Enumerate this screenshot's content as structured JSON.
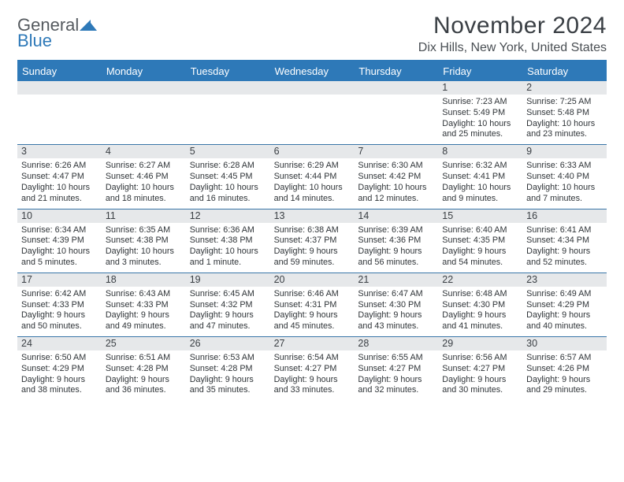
{
  "brand": {
    "part1": "General",
    "part2": "Blue"
  },
  "title": "November 2024",
  "location": "Dix Hills, New York, United States",
  "colors": {
    "header_bg": "#2e79b8",
    "header_text": "#ffffff",
    "daynum_bg": "#e6e8ea",
    "week_divider": "#3a76a8",
    "text": "#2f3438"
  },
  "weekdays": [
    "Sunday",
    "Monday",
    "Tuesday",
    "Wednesday",
    "Thursday",
    "Friday",
    "Saturday"
  ],
  "layout": {
    "first_day_column": 5,
    "num_days": 30
  },
  "days": [
    {
      "n": 1,
      "sunrise": "7:23 AM",
      "sunset": "5:49 PM",
      "daylight": "10 hours and 25 minutes."
    },
    {
      "n": 2,
      "sunrise": "7:25 AM",
      "sunset": "5:48 PM",
      "daylight": "10 hours and 23 minutes."
    },
    {
      "n": 3,
      "sunrise": "6:26 AM",
      "sunset": "4:47 PM",
      "daylight": "10 hours and 21 minutes."
    },
    {
      "n": 4,
      "sunrise": "6:27 AM",
      "sunset": "4:46 PM",
      "daylight": "10 hours and 18 minutes."
    },
    {
      "n": 5,
      "sunrise": "6:28 AM",
      "sunset": "4:45 PM",
      "daylight": "10 hours and 16 minutes."
    },
    {
      "n": 6,
      "sunrise": "6:29 AM",
      "sunset": "4:44 PM",
      "daylight": "10 hours and 14 minutes."
    },
    {
      "n": 7,
      "sunrise": "6:30 AM",
      "sunset": "4:42 PM",
      "daylight": "10 hours and 12 minutes."
    },
    {
      "n": 8,
      "sunrise": "6:32 AM",
      "sunset": "4:41 PM",
      "daylight": "10 hours and 9 minutes."
    },
    {
      "n": 9,
      "sunrise": "6:33 AM",
      "sunset": "4:40 PM",
      "daylight": "10 hours and 7 minutes."
    },
    {
      "n": 10,
      "sunrise": "6:34 AM",
      "sunset": "4:39 PM",
      "daylight": "10 hours and 5 minutes."
    },
    {
      "n": 11,
      "sunrise": "6:35 AM",
      "sunset": "4:38 PM",
      "daylight": "10 hours and 3 minutes."
    },
    {
      "n": 12,
      "sunrise": "6:36 AM",
      "sunset": "4:38 PM",
      "daylight": "10 hours and 1 minute."
    },
    {
      "n": 13,
      "sunrise": "6:38 AM",
      "sunset": "4:37 PM",
      "daylight": "9 hours and 59 minutes."
    },
    {
      "n": 14,
      "sunrise": "6:39 AM",
      "sunset": "4:36 PM",
      "daylight": "9 hours and 56 minutes."
    },
    {
      "n": 15,
      "sunrise": "6:40 AM",
      "sunset": "4:35 PM",
      "daylight": "9 hours and 54 minutes."
    },
    {
      "n": 16,
      "sunrise": "6:41 AM",
      "sunset": "4:34 PM",
      "daylight": "9 hours and 52 minutes."
    },
    {
      "n": 17,
      "sunrise": "6:42 AM",
      "sunset": "4:33 PM",
      "daylight": "9 hours and 50 minutes."
    },
    {
      "n": 18,
      "sunrise": "6:43 AM",
      "sunset": "4:33 PM",
      "daylight": "9 hours and 49 minutes."
    },
    {
      "n": 19,
      "sunrise": "6:45 AM",
      "sunset": "4:32 PM",
      "daylight": "9 hours and 47 minutes."
    },
    {
      "n": 20,
      "sunrise": "6:46 AM",
      "sunset": "4:31 PM",
      "daylight": "9 hours and 45 minutes."
    },
    {
      "n": 21,
      "sunrise": "6:47 AM",
      "sunset": "4:30 PM",
      "daylight": "9 hours and 43 minutes."
    },
    {
      "n": 22,
      "sunrise": "6:48 AM",
      "sunset": "4:30 PM",
      "daylight": "9 hours and 41 minutes."
    },
    {
      "n": 23,
      "sunrise": "6:49 AM",
      "sunset": "4:29 PM",
      "daylight": "9 hours and 40 minutes."
    },
    {
      "n": 24,
      "sunrise": "6:50 AM",
      "sunset": "4:29 PM",
      "daylight": "9 hours and 38 minutes."
    },
    {
      "n": 25,
      "sunrise": "6:51 AM",
      "sunset": "4:28 PM",
      "daylight": "9 hours and 36 minutes."
    },
    {
      "n": 26,
      "sunrise": "6:53 AM",
      "sunset": "4:28 PM",
      "daylight": "9 hours and 35 minutes."
    },
    {
      "n": 27,
      "sunrise": "6:54 AM",
      "sunset": "4:27 PM",
      "daylight": "9 hours and 33 minutes."
    },
    {
      "n": 28,
      "sunrise": "6:55 AM",
      "sunset": "4:27 PM",
      "daylight": "9 hours and 32 minutes."
    },
    {
      "n": 29,
      "sunrise": "6:56 AM",
      "sunset": "4:27 PM",
      "daylight": "9 hours and 30 minutes."
    },
    {
      "n": 30,
      "sunrise": "6:57 AM",
      "sunset": "4:26 PM",
      "daylight": "9 hours and 29 minutes."
    }
  ],
  "labels": {
    "sunrise": "Sunrise:",
    "sunset": "Sunset:",
    "daylight": "Daylight:"
  }
}
